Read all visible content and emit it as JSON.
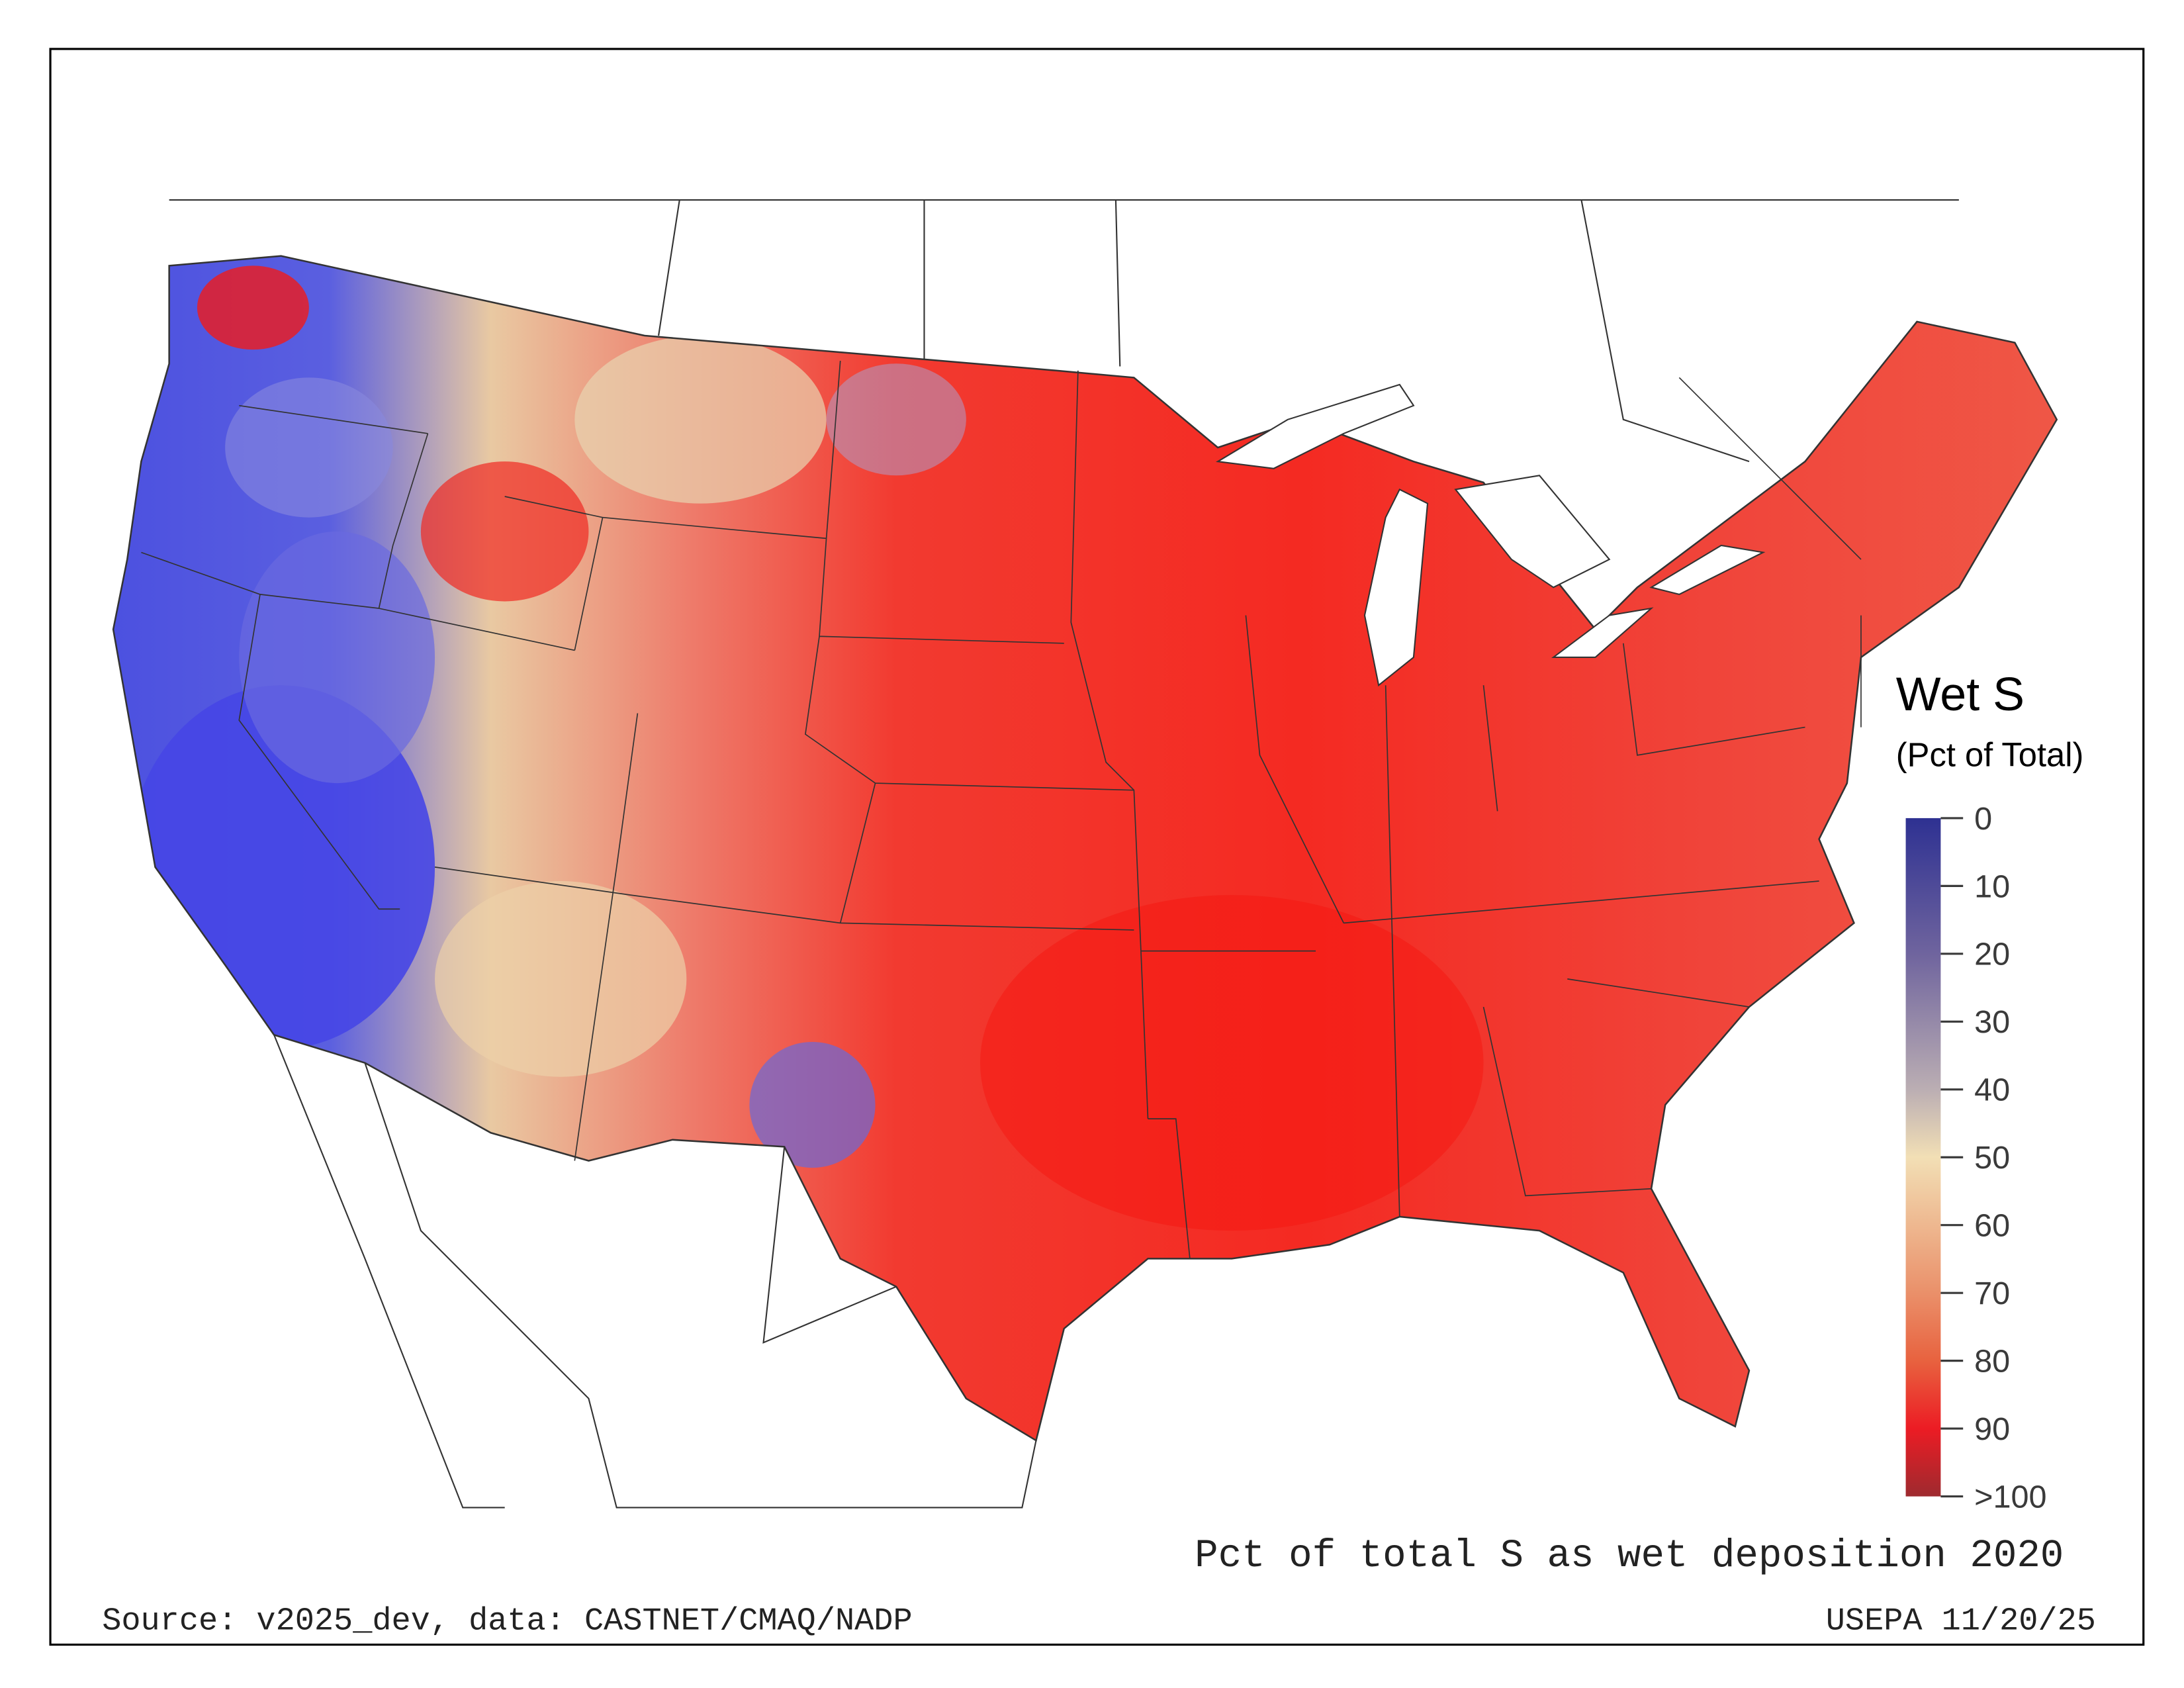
{
  "legend": {
    "title": "Wet S",
    "subtitle": "(Pct of Total)",
    "ticks": [
      "0",
      "10",
      "20",
      "30",
      "40",
      "50",
      "60",
      "70",
      "80",
      "90",
      ">100"
    ],
    "colors": [
      "#2e3192",
      "#4a4896",
      "#6f649e",
      "#9583a8",
      "#bbaeb3",
      "#f2dfb5",
      "#efb88f",
      "#ea906a",
      "#e8623f",
      "#ec1c24",
      "#9e2a2f"
    ]
  },
  "map": {
    "title": "Pct of total S as wet deposition 2020",
    "source": "Source: v2025_dev, data: CASTNET/CMAQ/NADP",
    "credit": "USEPA 11/20/25"
  }
}
